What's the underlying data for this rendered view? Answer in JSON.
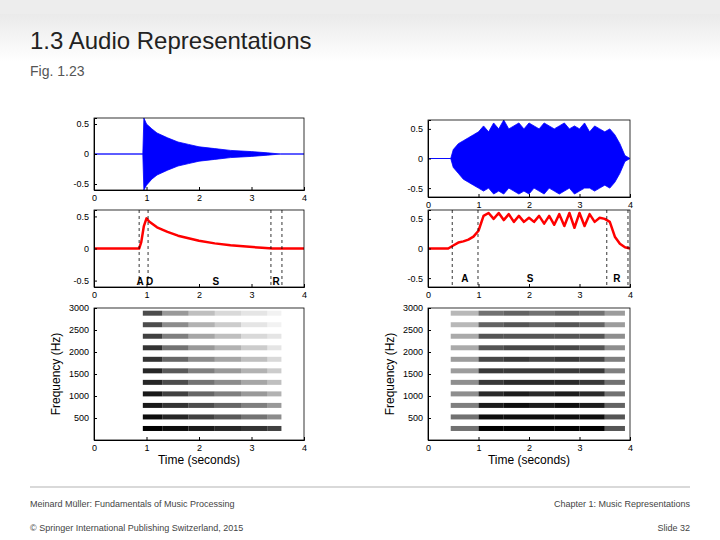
{
  "slide": {
    "title": "1.3 Audio Representations",
    "subtitle": "Fig. 1.23",
    "footer_left": [
      "Meinard Müller: Fundamentals of Music Processing",
      "© Springer International Publishing Switzerland, 2015"
    ],
    "footer_right": [
      "Chapter 1: Music Representations",
      "Slide 32"
    ]
  },
  "chart_data": [
    {
      "type": "area",
      "color": "#0000ff",
      "x": [
        0,
        0.93,
        0.95,
        1.0,
        1.1,
        1.2,
        1.4,
        1.6,
        1.8,
        2.0,
        2.3,
        2.6,
        3.0,
        3.3,
        3.55,
        4.0
      ],
      "upper": [
        0,
        0,
        0.6,
        0.5,
        0.42,
        0.35,
        0.27,
        0.2,
        0.16,
        0.12,
        0.09,
        0.06,
        0.04,
        0.02,
        0,
        0
      ],
      "lower": [
        0,
        0,
        -0.6,
        -0.52,
        -0.42,
        -0.35,
        -0.27,
        -0.2,
        -0.16,
        -0.12,
        -0.09,
        -0.06,
        -0.04,
        -0.02,
        0,
        0
      ],
      "xlim": [
        0,
        4
      ],
      "ylim": [
        -0.6,
        0.6
      ],
      "xticks": [
        0,
        1,
        2,
        3,
        4
      ],
      "yticks": [
        -0.5,
        0,
        0.5
      ]
    },
    {
      "type": "area",
      "color": "#0000ff",
      "x": [
        0,
        0.45,
        0.5,
        0.6,
        0.7,
        0.8,
        0.9,
        1,
        1.1,
        1.2,
        1.3,
        1.4,
        1.5,
        1.6,
        1.7,
        1.8,
        1.9,
        2,
        2.1,
        2.2,
        2.3,
        2.4,
        2.5,
        2.6,
        2.7,
        2.8,
        2.9,
        3,
        3.1,
        3.2,
        3.3,
        3.4,
        3.5,
        3.6,
        3.7,
        3.8,
        3.9,
        4
      ],
      "upper": [
        0,
        0,
        0.15,
        0.25,
        0.3,
        0.35,
        0.4,
        0.45,
        0.55,
        0.45,
        0.6,
        0.5,
        0.65,
        0.5,
        0.55,
        0.6,
        0.5,
        0.6,
        0.55,
        0.5,
        0.6,
        0.55,
        0.5,
        0.55,
        0.6,
        0.5,
        0.55,
        0.5,
        0.6,
        0.45,
        0.55,
        0.5,
        0.45,
        0.5,
        0.4,
        0.25,
        0.05,
        0
      ],
      "lower": [
        0,
        0,
        -0.15,
        -0.25,
        -0.35,
        -0.4,
        -0.45,
        -0.5,
        -0.55,
        -0.5,
        -0.6,
        -0.55,
        -0.6,
        -0.5,
        -0.55,
        -0.6,
        -0.55,
        -0.6,
        -0.5,
        -0.55,
        -0.6,
        -0.5,
        -0.55,
        -0.6,
        -0.55,
        -0.5,
        -0.6,
        -0.55,
        -0.5,
        -0.5,
        -0.55,
        -0.5,
        -0.45,
        -0.5,
        -0.4,
        -0.25,
        -0.05,
        0
      ],
      "xlim": [
        0,
        4
      ],
      "ylim": [
        -0.65,
        0.65
      ],
      "xticks": [
        0,
        1,
        2,
        3,
        4
      ],
      "yticks": [
        -0.5,
        0,
        0.5
      ]
    },
    {
      "type": "line",
      "color": "#ff0000",
      "x": [
        0,
        0.86,
        0.9,
        0.95,
        1.0,
        1.05,
        1.2,
        1.4,
        1.6,
        1.8,
        2.0,
        2.3,
        2.6,
        2.9,
        3.2,
        3.4,
        4.0
      ],
      "values": [
        0,
        0,
        0.1,
        0.35,
        0.47,
        0.42,
        0.33,
        0.26,
        0.2,
        0.16,
        0.12,
        0.08,
        0.05,
        0.03,
        0.01,
        0,
        0
      ],
      "markers": [
        0.86,
        1.03,
        3.37,
        3.58
      ],
      "annotations": [
        {
          "text": "A D",
          "x": 0.97,
          "y": -0.5
        },
        {
          "text": "S",
          "x": 2.32,
          "y": -0.5
        },
        {
          "text": "R",
          "x": 3.47,
          "y": -0.5
        }
      ],
      "xlim": [
        0,
        4
      ],
      "ylim": [
        -0.6,
        0.6
      ],
      "xticks": [
        0,
        1,
        2,
        3,
        4
      ],
      "yticks": [
        -0.5,
        0,
        0.5
      ]
    },
    {
      "type": "line",
      "color": "#ff0000",
      "x": [
        0,
        0.4,
        0.5,
        0.6,
        0.7,
        0.8,
        0.9,
        1,
        1.1,
        1.2,
        1.3,
        1.4,
        1.5,
        1.6,
        1.7,
        1.8,
        1.9,
        2,
        2.1,
        2.2,
        2.3,
        2.4,
        2.5,
        2.6,
        2.7,
        2.8,
        2.9,
        3,
        3.1,
        3.2,
        3.3,
        3.4,
        3.5,
        3.6,
        3.7,
        3.8,
        3.9,
        4
      ],
      "values": [
        0,
        0,
        0.05,
        0.1,
        0.12,
        0.15,
        0.2,
        0.3,
        0.55,
        0.6,
        0.5,
        0.6,
        0.48,
        0.58,
        0.45,
        0.55,
        0.45,
        0.52,
        0.45,
        0.55,
        0.42,
        0.55,
        0.4,
        0.58,
        0.38,
        0.6,
        0.35,
        0.6,
        0.38,
        0.58,
        0.45,
        0.52,
        0.5,
        0.45,
        0.2,
        0.08,
        0.02,
        0
      ],
      "markers": [
        0.48,
        0.99,
        3.54,
        3.96
      ],
      "annotations": [
        {
          "text": "A",
          "x": 0.73,
          "y": -0.5
        },
        {
          "text": "S",
          "x": 2.02,
          "y": -0.5
        },
        {
          "text": "R",
          "x": 3.74,
          "y": -0.5
        }
      ],
      "xlim": [
        0,
        4
      ],
      "ylim": [
        -0.65,
        0.65
      ],
      "xticks": [
        0,
        1,
        2,
        3,
        4
      ],
      "yticks": [
        -0.5,
        0,
        0.5
      ]
    },
    {
      "type": "heatmap",
      "color": "#000000",
      "xlabel": "Time (seconds)",
      "ylabel": "Frequency (Hz)",
      "times": [
        0.93,
        1.3,
        1.8,
        2.3,
        2.8,
        3.3,
        3.57
      ],
      "freqs": [
        262,
        524,
        786,
        1048,
        1310,
        1572,
        1834,
        2096,
        2358,
        2620,
        2882
      ],
      "cells": [
        [
          1,
          0.95,
          0.9,
          0.85,
          0.8,
          0.75
        ],
        [
          0.95,
          0.85,
          0.75,
          0.65,
          0.55,
          0.45
        ],
        [
          0.9,
          0.8,
          0.7,
          0.6,
          0.5,
          0.4
        ],
        [
          0.9,
          0.75,
          0.6,
          0.5,
          0.4,
          0.3
        ],
        [
          0.85,
          0.7,
          0.55,
          0.45,
          0.35,
          0.25
        ],
        [
          0.85,
          0.65,
          0.5,
          0.4,
          0.3,
          0.2
        ],
        [
          0.8,
          0.6,
          0.45,
          0.35,
          0.25,
          0.15
        ],
        [
          0.8,
          0.55,
          0.4,
          0.3,
          0.2,
          0.1
        ],
        [
          0.75,
          0.5,
          0.35,
          0.25,
          0.15,
          0.1
        ],
        [
          0.7,
          0.45,
          0.3,
          0.2,
          0.1,
          0.05
        ],
        [
          0.7,
          0.4,
          0.25,
          0.15,
          0.1,
          0.05
        ]
      ],
      "xlim": [
        0,
        4
      ],
      "ylim": [
        0,
        3000
      ],
      "xticks": [
        0,
        1,
        2,
        3,
        4
      ],
      "yticks": [
        500,
        1000,
        1500,
        2000,
        2500,
        3000
      ]
    },
    {
      "type": "heatmap",
      "color": "#000000",
      "xlabel": "Time (seconds)",
      "ylabel": "Frequency (Hz)",
      "times": [
        0.45,
        1.0,
        1.5,
        2.0,
        2.5,
        3.0,
        3.5,
        3.9
      ],
      "freqs": [
        262,
        524,
        786,
        1048,
        1310,
        1572,
        1834,
        2096,
        2358,
        2620,
        2882
      ],
      "cells": [
        [
          0.5,
          0.9,
          0.9,
          0.9,
          0.9,
          0.9,
          0.6
        ],
        [
          0.5,
          0.85,
          0.85,
          0.85,
          0.85,
          0.85,
          0.6
        ],
        [
          0.45,
          0.8,
          0.85,
          0.8,
          0.85,
          0.8,
          0.55
        ],
        [
          0.4,
          0.75,
          0.8,
          0.75,
          0.8,
          0.75,
          0.5
        ],
        [
          0.4,
          0.7,
          0.75,
          0.75,
          0.75,
          0.7,
          0.5
        ],
        [
          0.35,
          0.7,
          0.7,
          0.7,
          0.7,
          0.7,
          0.45
        ],
        [
          0.35,
          0.65,
          0.7,
          0.65,
          0.7,
          0.65,
          0.45
        ],
        [
          0.3,
          0.6,
          0.65,
          0.65,
          0.65,
          0.6,
          0.4
        ],
        [
          0.3,
          0.6,
          0.6,
          0.6,
          0.6,
          0.6,
          0.4
        ],
        [
          0.25,
          0.55,
          0.6,
          0.55,
          0.6,
          0.55,
          0.35
        ],
        [
          0.25,
          0.5,
          0.55,
          0.5,
          0.55,
          0.5,
          0.35
        ]
      ],
      "xlim": [
        0,
        4
      ],
      "ylim": [
        0,
        3000
      ],
      "xticks": [
        0,
        1,
        2,
        3,
        4
      ],
      "yticks": [
        500,
        1000,
        1500,
        2000,
        2500,
        3000
      ]
    }
  ]
}
